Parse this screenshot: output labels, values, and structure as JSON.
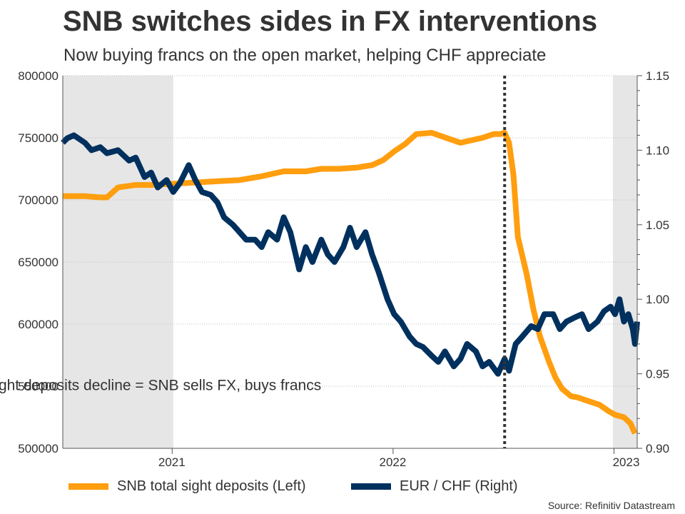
{
  "header": {
    "title": "SNB switches sides in FX interventions",
    "subtitle": "Now buying francs on the open market, helping CHF appreciate"
  },
  "source": "Source: Refinitiv Datastream",
  "colors": {
    "deposits": "#FF9E0F",
    "eurchf": "#00305E",
    "shade": "#E6E6E6",
    "grid": "#BFBFBF",
    "text": "#333333"
  },
  "legend": [
    {
      "label": "SNB total sight deposits (Left)",
      "color": "#FF9E0F"
    },
    {
      "label": "EUR / CHF (Right)",
      "color": "#00305E"
    }
  ],
  "chart_data": {
    "type": "line",
    "x_range": [
      2020.5,
      2023.1
    ],
    "x_ticks": [
      2021,
      2022,
      2023
    ],
    "x_tick_labels": [
      "2021",
      "2022",
      "2023"
    ],
    "y_left_range": [
      500000,
      800000
    ],
    "y_left_ticks": [
      500000,
      550000,
      600000,
      650000,
      700000,
      750000,
      800000
    ],
    "y_left_tick_labels": [
      "500000",
      "550000",
      "600000",
      "650000",
      "700000",
      "750000",
      "800000"
    ],
    "y_right_range": [
      0.9,
      1.15
    ],
    "y_right_ticks": [
      0.9,
      0.95,
      1.0,
      1.05,
      1.1,
      1.15
    ],
    "y_right_tick_labels": [
      "0.90",
      "0.95",
      "1.00",
      "1.05",
      "1.10",
      "1.15"
    ],
    "shaded_regions": [
      [
        2020.5,
        2021.0
      ],
      [
        2022.99,
        2023.1
      ]
    ],
    "vline_x": 2022.5,
    "annotation": {
      "text": "Sight deposits decline = SNB sells FX, buys francs",
      "x": 2021.67,
      "y": 551000
    },
    "series": [
      {
        "name": "SNB total sight deposits (Left)",
        "axis": "left",
        "x": [
          2020.5,
          2020.6,
          2020.67,
          2020.7,
          2020.75,
          2020.83,
          2020.9,
          2021.0,
          2021.1,
          2021.2,
          2021.3,
          2021.4,
          2021.5,
          2021.6,
          2021.67,
          2021.75,
          2021.83,
          2021.9,
          2021.95,
          2022.0,
          2022.05,
          2022.1,
          2022.17,
          2022.25,
          2022.3,
          2022.35,
          2022.4,
          2022.45,
          2022.48,
          2022.5,
          2022.52,
          2022.54,
          2022.56,
          2022.6,
          2022.63,
          2022.66,
          2022.7,
          2022.73,
          2022.76,
          2022.8,
          2022.83,
          2022.88,
          2022.93,
          2022.97,
          2023.0,
          2023.04,
          2023.07,
          2023.09
        ],
        "values": [
          703000,
          703000,
          702000,
          702000,
          710000,
          712000,
          712000,
          713000,
          714000,
          715000,
          716000,
          719000,
          723000,
          723000,
          725000,
          725000,
          726000,
          728000,
          732000,
          739000,
          745000,
          753000,
          754000,
          749000,
          746000,
          748000,
          750000,
          753000,
          753000,
          754000,
          746000,
          720000,
          670000,
          640000,
          612000,
          590000,
          570000,
          557000,
          548000,
          542000,
          541000,
          538000,
          535000,
          530000,
          527000,
          525000,
          520000,
          512000
        ]
      },
      {
        "name": "EUR / CHF (Right)",
        "axis": "right",
        "x": [
          2020.5,
          2020.52,
          2020.55,
          2020.6,
          2020.63,
          2020.67,
          2020.7,
          2020.75,
          2020.8,
          2020.83,
          2020.87,
          2020.9,
          2020.93,
          2020.97,
          2021.0,
          2021.03,
          2021.07,
          2021.1,
          2021.13,
          2021.17,
          2021.2,
          2021.23,
          2021.27,
          2021.3,
          2021.33,
          2021.37,
          2021.4,
          2021.43,
          2021.47,
          2021.5,
          2021.53,
          2021.57,
          2021.6,
          2021.63,
          2021.67,
          2021.7,
          2021.73,
          2021.77,
          2021.8,
          2021.83,
          2021.87,
          2021.9,
          2021.93,
          2021.97,
          2022.0,
          2022.03,
          2022.07,
          2022.1,
          2022.13,
          2022.17,
          2022.2,
          2022.23,
          2022.27,
          2022.3,
          2022.33,
          2022.37,
          2022.4,
          2022.43,
          2022.47,
          2022.5,
          2022.52,
          2022.55,
          2022.58,
          2022.62,
          2022.65,
          2022.68,
          2022.72,
          2022.75,
          2022.78,
          2022.82,
          2022.85,
          2022.88,
          2022.92,
          2022.95,
          2022.98,
          2023.0,
          2023.02,
          2023.04,
          2023.06,
          2023.08,
          2023.09,
          2023.1
        ],
        "values": [
          1.105,
          1.108,
          1.11,
          1.105,
          1.1,
          1.102,
          1.098,
          1.1,
          1.093,
          1.095,
          1.082,
          1.085,
          1.075,
          1.08,
          1.072,
          1.078,
          1.09,
          1.08,
          1.072,
          1.07,
          1.065,
          1.055,
          1.05,
          1.045,
          1.04,
          1.04,
          1.035,
          1.045,
          1.04,
          1.055,
          1.045,
          1.02,
          1.035,
          1.025,
          1.04,
          1.03,
          1.025,
          1.035,
          1.048,
          1.035,
          1.045,
          1.03,
          1.018,
          1.0,
          0.99,
          0.985,
          0.975,
          0.97,
          0.968,
          0.962,
          0.958,
          0.965,
          0.955,
          0.96,
          0.97,
          0.965,
          0.955,
          0.958,
          0.95,
          0.96,
          0.952,
          0.97,
          0.975,
          0.982,
          0.98,
          0.99,
          0.99,
          0.98,
          0.985,
          0.988,
          0.99,
          0.98,
          0.985,
          0.992,
          0.995,
          0.99,
          1.0,
          0.985,
          0.99,
          0.98,
          0.97,
          0.985
        ]
      }
    ]
  }
}
